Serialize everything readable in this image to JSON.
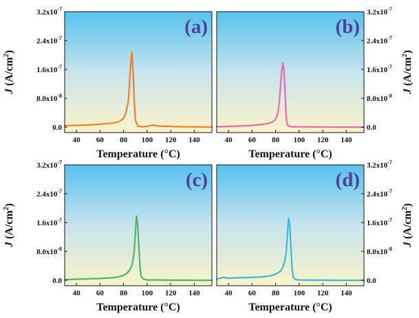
{
  "chart_data": [
    {
      "type": "line",
      "panel_label": "(a)",
      "xlabel": "Temperature (°C)",
      "ylabel_symbol": "J",
      "ylabel_unit": "(A/cm",
      "ylabel_exp": "2",
      "ylabel_close": ")",
      "ylabel_side": "left",
      "xlim": [
        30,
        155
      ],
      "ylim": [
        -1.5e-08,
        3.2e-07
      ],
      "xticks": [
        40,
        60,
        80,
        100,
        120,
        140
      ],
      "yticks": [
        {
          "value": 0,
          "mantissa": "0.0",
          "exponent": ""
        },
        {
          "value": 8e-08,
          "mantissa": "8.0x10",
          "exponent": "-8"
        },
        {
          "value": 1.6e-07,
          "mantissa": "1.6x10",
          "exponent": "-7"
        },
        {
          "value": 2.4e-07,
          "mantissa": "2.4x10",
          "exponent": "-7"
        },
        {
          "value": 3.2e-07,
          "mantissa": "3.2x10",
          "exponent": "-7"
        }
      ],
      "color": "#F07F2C",
      "series": [
        {
          "x": [
            30,
            40,
            50,
            60,
            70,
            75,
            78,
            80,
            82,
            84,
            85,
            86,
            87,
            88,
            89,
            90,
            92,
            95,
            100,
            105,
            110,
            120,
            130,
            140,
            155
          ],
          "y": [
            4e-09,
            5e-09,
            6e-09,
            8e-09,
            1.1e-08,
            1.4e-08,
            1.9e-08,
            2.5e-08,
            4e-08,
            7e-08,
            1.2e-07,
            1.75e-07,
            2.08e-07,
            1.6e-07,
            8e-08,
            2e-08,
            3e-09,
            1e-09,
            2e-09,
            6e-09,
            3e-09,
            2e-09,
            1e-09,
            1e-09,
            0.0
          ]
        }
      ]
    },
    {
      "type": "line",
      "panel_label": "(b)",
      "xlabel": "Temperature (°C)",
      "ylabel_symbol": "J",
      "ylabel_unit": "(A/cm",
      "ylabel_exp": "2",
      "ylabel_close": ")",
      "ylabel_side": "right",
      "xlim": [
        30,
        155
      ],
      "ylim": [
        -1.5e-08,
        3.2e-07
      ],
      "xticks": [
        40,
        60,
        80,
        100,
        120,
        140
      ],
      "yticks": [
        {
          "value": 0,
          "mantissa": "0.0",
          "exponent": ""
        },
        {
          "value": 8e-08,
          "mantissa": "8.0x10",
          "exponent": "-8"
        },
        {
          "value": 1.6e-07,
          "mantissa": "1.6x10",
          "exponent": "-7"
        },
        {
          "value": 2.4e-07,
          "mantissa": "2.4x10",
          "exponent": "-7"
        },
        {
          "value": 3.2e-07,
          "mantissa": "3.2x10",
          "exponent": "-7"
        }
      ],
      "color": "#E36BB3",
      "series": [
        {
          "x": [
            30,
            40,
            50,
            60,
            70,
            75,
            78,
            80,
            82,
            83,
            84,
            85,
            86,
            87,
            88,
            89,
            90,
            92,
            95,
            100,
            110,
            120,
            130,
            140,
            155
          ],
          "y": [
            1e-09,
            2e-09,
            3e-09,
            5e-09,
            8e-09,
            1.1e-08,
            1.6e-08,
            2.2e-08,
            4e-08,
            6.5e-08,
            1.05e-07,
            1.5e-07,
            1.78e-07,
            1.6e-07,
            1e-07,
            2.5e-08,
            6e-09,
            2e-09,
            1e-09,
            1e-09,
            5e-10,
            5e-10,
            0.0,
            0.0,
            0.0
          ]
        }
      ]
    },
    {
      "type": "line",
      "panel_label": "(c)",
      "xlabel": "Temperature (°C)",
      "ylabel_symbol": "J",
      "ylabel_unit": "(A/cm",
      "ylabel_exp": "2",
      "ylabel_close": ")",
      "ylabel_side": "left",
      "xlim": [
        30,
        155
      ],
      "ylim": [
        -1.5e-08,
        3.2e-07
      ],
      "xticks": [
        40,
        60,
        80,
        100,
        120,
        140
      ],
      "yticks": [
        {
          "value": 0,
          "mantissa": "0.0",
          "exponent": ""
        },
        {
          "value": 8e-08,
          "mantissa": "8.0x10",
          "exponent": "-8"
        },
        {
          "value": 1.6e-07,
          "mantissa": "1.6x10",
          "exponent": "-7"
        },
        {
          "value": 2.4e-07,
          "mantissa": "2.4x10",
          "exponent": "-7"
        },
        {
          "value": 3.2e-07,
          "mantissa": "3.2x10",
          "exponent": "-7"
        }
      ],
      "color": "#4DB56A",
      "series": [
        {
          "x": [
            30,
            40,
            50,
            60,
            70,
            75,
            80,
            83,
            85,
            87,
            88,
            89,
            90,
            91,
            92,
            93,
            94,
            95,
            97,
            100,
            110,
            120,
            130,
            140,
            155
          ],
          "y": [
            2e-09,
            3e-09,
            4e-09,
            5e-09,
            7e-09,
            9e-09,
            1.4e-08,
            2e-08,
            2.8e-08,
            4e-08,
            5.5e-08,
            8e-08,
            1.3e-07,
            1.78e-07,
            1.55e-07,
            9e-08,
            3.5e-08,
            1e-08,
            3e-09,
            1e-09,
            1e-09,
            5e-10,
            5e-10,
            0.0,
            0.0
          ]
        }
      ]
    },
    {
      "type": "line",
      "panel_label": "(d)",
      "xlabel": "Temperature (°C)",
      "ylabel_symbol": "J",
      "ylabel_unit": "(A/cm",
      "ylabel_exp": "2",
      "ylabel_close": ")",
      "ylabel_side": "right",
      "xlim": [
        30,
        155
      ],
      "ylim": [
        -1.5e-08,
        3.2e-07
      ],
      "xticks": [
        40,
        60,
        80,
        100,
        120,
        140
      ],
      "yticks": [
        {
          "value": 0,
          "mantissa": "0.0",
          "exponent": ""
        },
        {
          "value": 8e-08,
          "mantissa": "8.0x10",
          "exponent": "-8"
        },
        {
          "value": 1.6e-07,
          "mantissa": "1.6x10",
          "exponent": "-7"
        },
        {
          "value": 2.4e-07,
          "mantissa": "2.4x10",
          "exponent": "-7"
        },
        {
          "value": 3.2e-07,
          "mantissa": "3.2x10",
          "exponent": "-7"
        }
      ],
      "color": "#38B8DE",
      "series": [
        {
          "x": [
            30,
            35,
            40,
            50,
            60,
            70,
            75,
            80,
            84,
            86,
            88,
            89,
            90,
            91,
            92,
            93,
            94,
            95,
            97,
            100,
            110,
            120,
            130,
            140,
            155
          ],
          "y": [
            3e-09,
            8e-09,
            6e-09,
            7e-09,
            8e-09,
            1e-08,
            1.2e-08,
            1.7e-08,
            2.5e-08,
            3.5e-08,
            5.5e-08,
            8e-08,
            1.25e-07,
            1.72e-07,
            1.55e-07,
            9e-08,
            3e-08,
            8e-09,
            2e-09,
            1e-09,
            5e-10,
            5e-10,
            0.0,
            0.0,
            0.0
          ]
        }
      ]
    }
  ]
}
